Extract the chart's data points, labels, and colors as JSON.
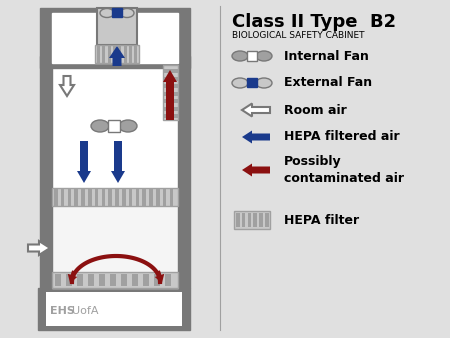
{
  "title": "Class II Type  B2",
  "subtitle": "BIOLOGICAL SAFETY CABINET",
  "bg_color": "#e0e0e0",
  "gray_dark": "#787878",
  "gray_mid": "#a0a0a0",
  "gray_light": "#c8c8c8",
  "blue": "#1a3a8c",
  "red_dark": "#8b1010",
  "white": "#ffffff",
  "ehs_text": "EHS",
  "uofa_text": "UofA"
}
